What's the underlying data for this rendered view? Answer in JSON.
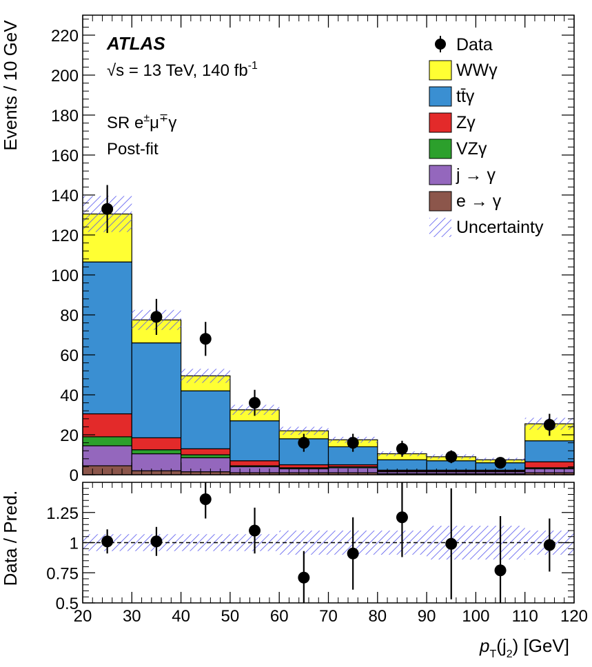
{
  "colors": {
    "ww": "#ffff33",
    "tt": "#3a8fd2",
    "z": "#e32a2a",
    "vz": "#2ca02c",
    "jet": "#9467bd",
    "ele": "#8c564b",
    "unc": "#5555ee"
  },
  "annotations": {
    "experiment": "ATLAS",
    "energy_prefix": "√s = 13 TeV, 140 fb",
    "energy_sup": "-1",
    "region_prefix": "SR e",
    "region_sup1": "±",
    "region_mid": "μ",
    "region_sup2": "∓",
    "region_suffix": "γ",
    "fit": "Post-fit"
  },
  "chart_data": [
    {
      "type": "bar",
      "title": "",
      "ylabel": "Events / 10 GeV",
      "ylim": [
        0,
        230
      ],
      "yticks": [
        0,
        20,
        40,
        60,
        80,
        100,
        120,
        140,
        160,
        180,
        200,
        220
      ],
      "bin_edges": [
        20,
        30,
        40,
        50,
        60,
        70,
        80,
        90,
        100,
        110,
        120
      ],
      "stacked": true,
      "series": [
        {
          "key": "ele",
          "name": "e → γ",
          "values": [
            4.5,
            2.0,
            1.5,
            1.0,
            1.0,
            1.0,
            0.5,
            0.5,
            0.5,
            1.0
          ]
        },
        {
          "key": "jet",
          "name": "j → γ",
          "values": [
            10.0,
            8.5,
            7.0,
            3.0,
            2.0,
            2.5,
            1.0,
            1.0,
            1.0,
            2.0
          ]
        },
        {
          "key": "vz",
          "name": "VZγ",
          "values": [
            4.5,
            2.0,
            1.5,
            0.5,
            0.5,
            0.5,
            0.3,
            0.3,
            0.3,
            0.5
          ]
        },
        {
          "key": "z",
          "name": "Zγ",
          "values": [
            11.5,
            6.0,
            3.0,
            2.5,
            1.5,
            1.0,
            0.5,
            0.5,
            0.5,
            3.0
          ]
        },
        {
          "key": "tt",
          "name": "tt̄γ",
          "values": [
            76.0,
            47.5,
            29.0,
            20.0,
            13.0,
            9.0,
            5.2,
            4.7,
            3.7,
            10.5
          ]
        },
        {
          "key": "ww",
          "name": "WWγ",
          "values": [
            24.0,
            11.5,
            7.5,
            5.5,
            4.0,
            3.5,
            3.0,
            2.0,
            1.5,
            8.5
          ]
        }
      ],
      "uncertainty": {
        "name": "Uncertainty",
        "values": [
          9.0,
          5.0,
          3.5,
          2.5,
          2.0,
          1.5,
          1.2,
          1.2,
          1.0,
          3.0
        ]
      },
      "data": {
        "name": "Data",
        "x": [
          25,
          35,
          45,
          55,
          65,
          75,
          85,
          95,
          105,
          115
        ],
        "y": [
          133,
          79,
          68,
          36,
          16,
          16,
          13,
          9,
          6,
          25
        ],
        "err": [
          12,
          9,
          8.5,
          6.5,
          4.5,
          4.5,
          4,
          3.2,
          2.5,
          5.5
        ]
      },
      "legend": "top-right"
    },
    {
      "type": "scatter",
      "ylabel": "Data / Pred.",
      "xlabel_prefix": "p",
      "xlabel_sub1": "T",
      "xlabel_mid": "(j",
      "xlabel_sub2": "2",
      "xlabel_suffix": ") [GeV]",
      "ylim": [
        0.5,
        1.5
      ],
      "yticks": [
        0.5,
        0.75,
        1,
        1.25
      ],
      "ytick_labels": [
        "0.5",
        "0.75",
        "1",
        "1.25"
      ],
      "xlim": [
        20,
        120
      ],
      "xticks": [
        20,
        30,
        40,
        50,
        60,
        70,
        80,
        90,
        100,
        110,
        120
      ],
      "x": [
        25,
        35,
        45,
        55,
        65,
        75,
        85,
        95,
        105,
        115
      ],
      "y": [
        1.01,
        1.01,
        1.36,
        1.1,
        0.71,
        0.91,
        1.21,
        0.99,
        0.77,
        0.98
      ],
      "err": [
        0.1,
        0.12,
        0.16,
        0.19,
        0.22,
        0.3,
        0.33,
        0.46,
        0.45,
        0.22
      ],
      "band": [
        0.07,
        0.07,
        0.07,
        0.07,
        0.1,
        0.1,
        0.1,
        0.14,
        0.14,
        0.1
      ],
      "reference_line": 1
    }
  ]
}
